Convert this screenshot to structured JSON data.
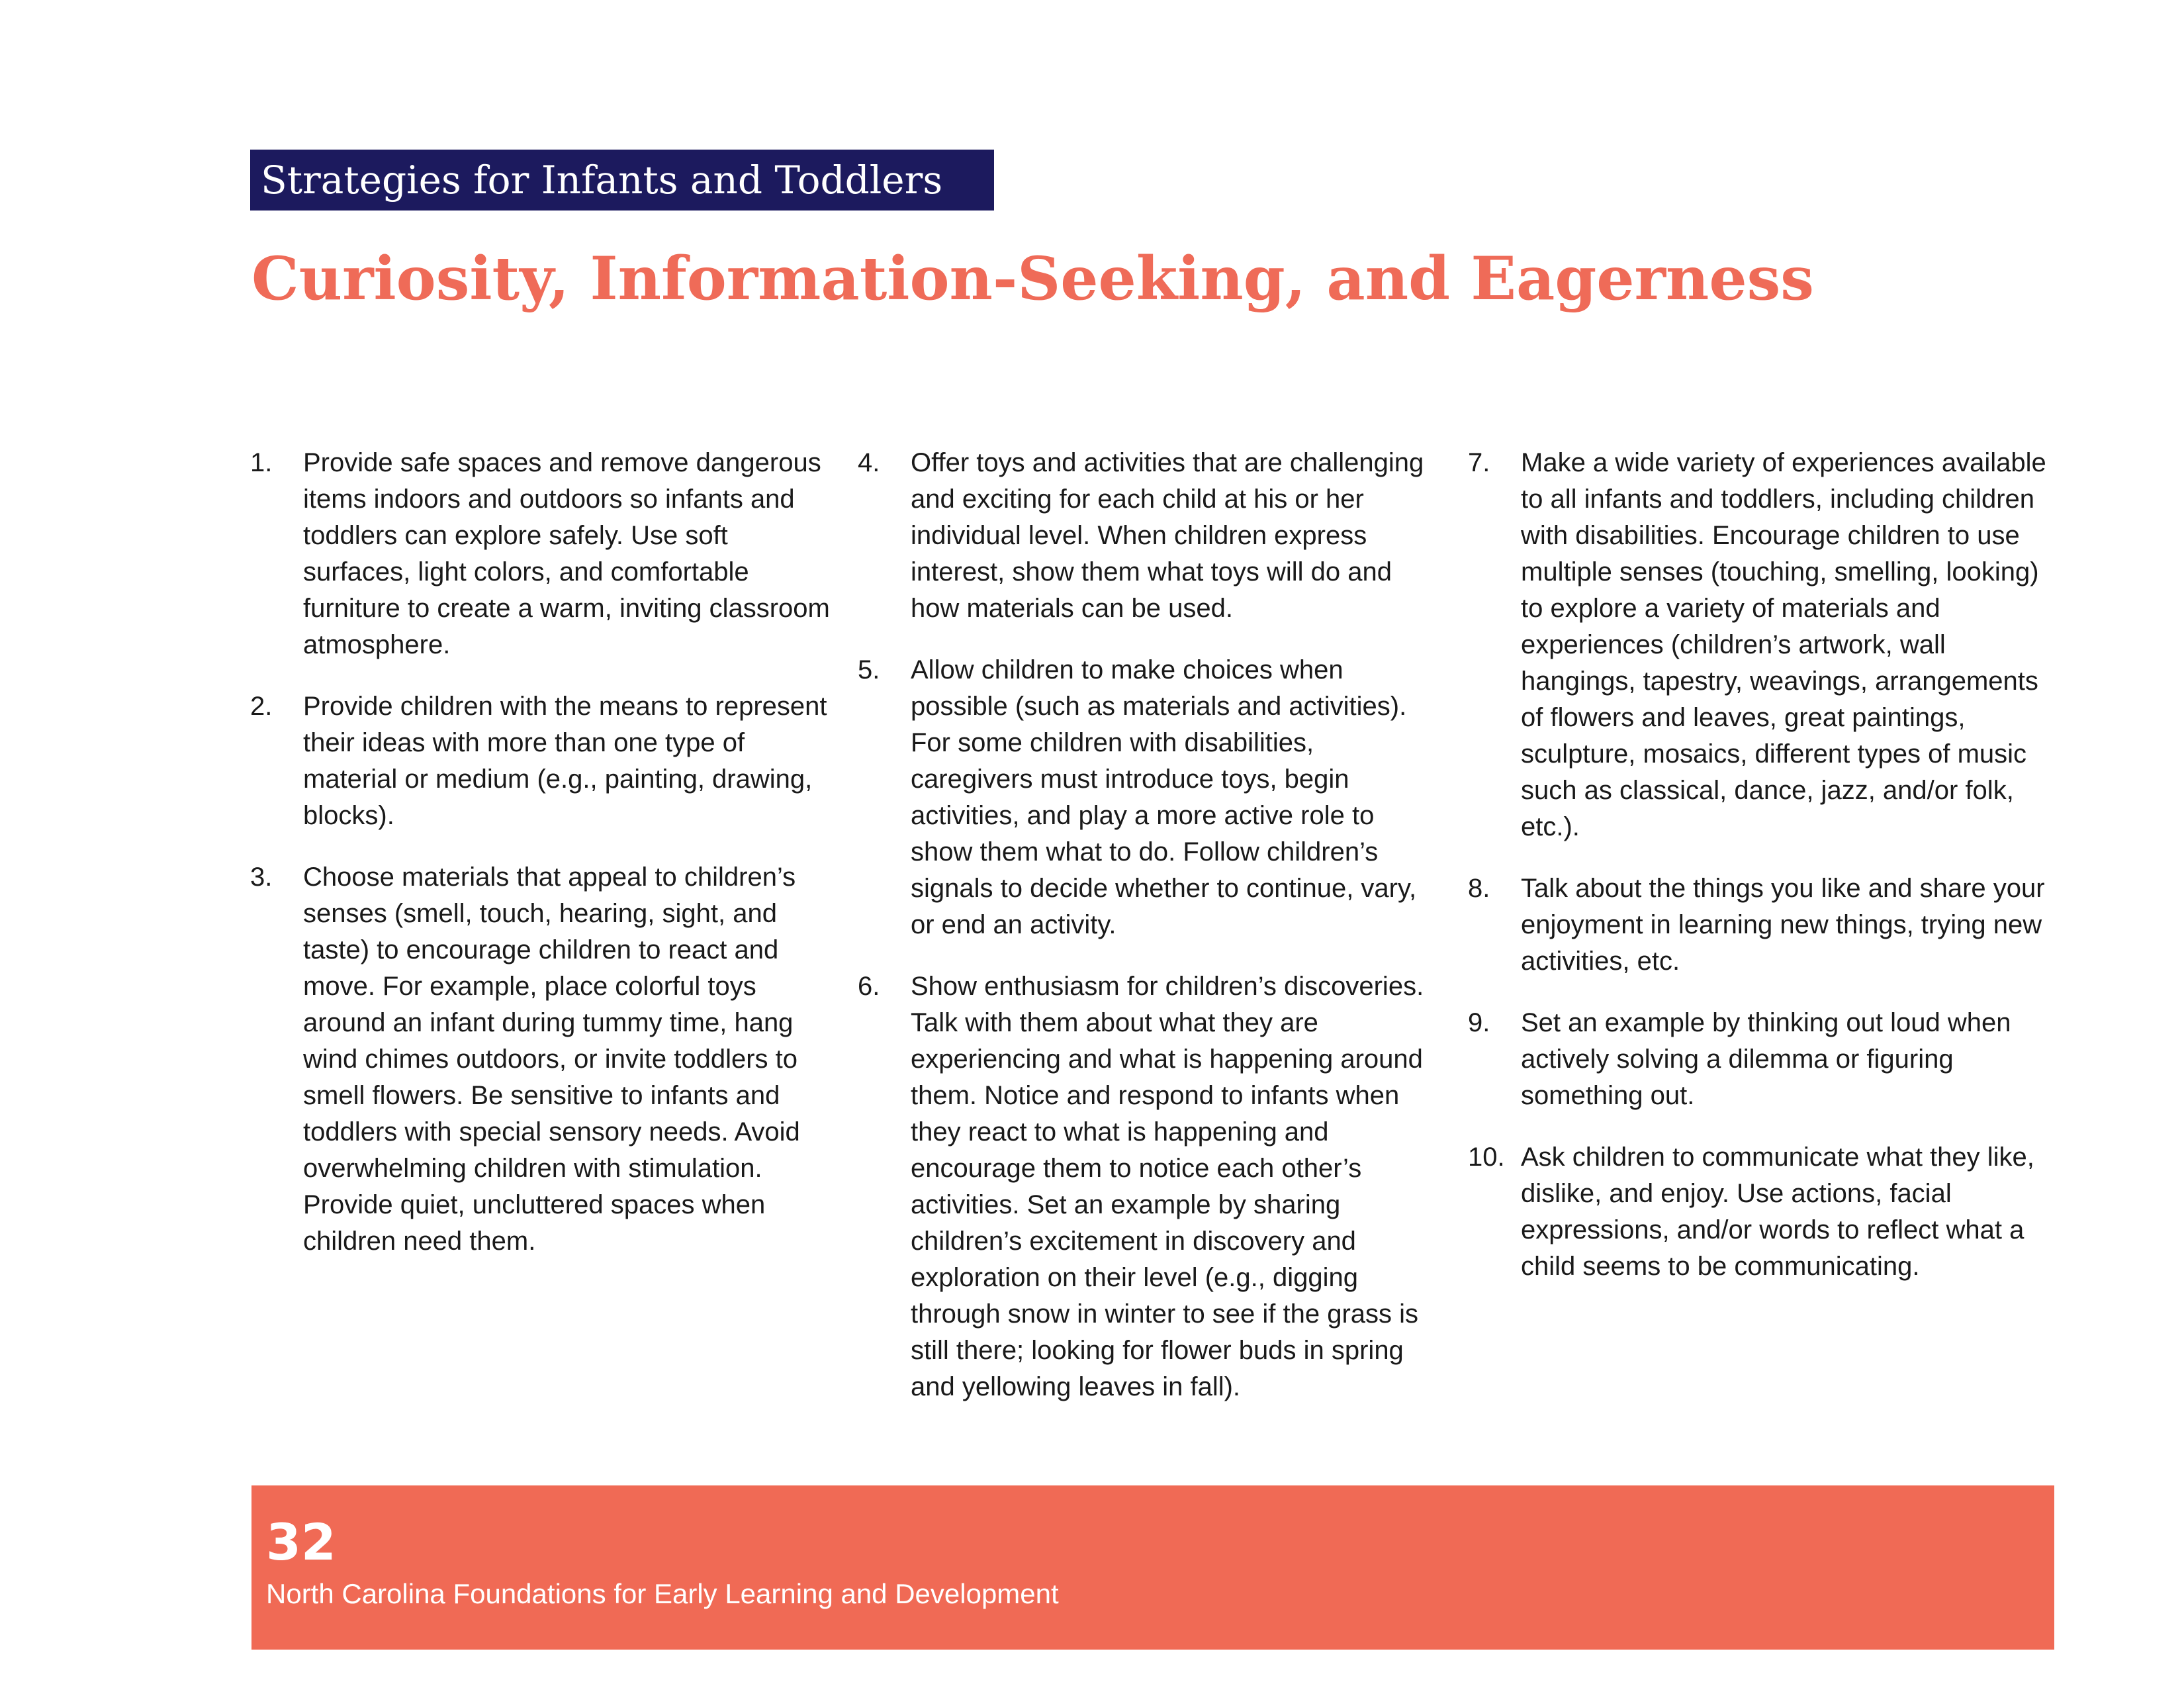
{
  "header": {
    "section_label": "Strategies for Infants and Toddlers",
    "title": "Curiosity, Information-Seeking, and Eagerness"
  },
  "columns": [
    {
      "items": [
        {
          "number": "1.",
          "text": "Provide safe spaces and remove dangerous items indoors and outdoors so infants and toddlers can explore safely. Use soft surfaces, light colors, and comfortable furniture to create a warm, inviting classroom atmosphere."
        },
        {
          "number": "2.",
          "text": "Provide children with the means to represent their ideas with more than one type of material or medium (e.g., painting, drawing, blocks)."
        },
        {
          "number": "3.",
          "text": "Choose materials that appeal to children’s senses (smell, touch, hearing, sight, and taste) to encourage children to react and move. For example, place colorful toys around an infant during tummy time, hang wind chimes outdoors, or invite toddlers to smell flowers. Be sensitive to infants and toddlers with special sensory needs. Avoid overwhelming children with stimulation. Provide quiet, uncluttered spaces when children need them."
        }
      ]
    },
    {
      "items": [
        {
          "number": "4.",
          "text": "Offer toys and activities that are challenging and exciting for each child at his or her individual level. When children express interest, show them what toys will do and how materials can be used."
        },
        {
          "number": "5.",
          "text": "Allow children to make choices when possible (such as materials and activities). For some children with disabilities, caregivers must introduce toys, begin activities, and play a more active role to show them what to do. Follow children’s signals to decide whether to continue, vary, or end an activity."
        },
        {
          "number": "6.",
          "text": "Show enthusiasm for children’s discoveries. Talk with them about what they are experiencing and what is happening around them. Notice and respond to infants when they react to what is happening and encourage them to notice each other’s activities. Set an example by sharing children’s excitement in discovery and exploration on their level (e.g., digging through snow in winter to see if the grass is still there; looking for flower buds in spring and yellowing leaves in fall)."
        }
      ]
    },
    {
      "items": [
        {
          "number": "7.",
          "text": "Make a wide variety of experiences available to all infants and toddlers, including children with disabilities. Encourage children to use multiple senses (touching, smelling, looking) to explore a variety of materials and experiences (children’s artwork, wall hangings, tapestry, weavings, arrangements of flowers and leaves, great paintings, sculpture, mosaics, different types of music such as classical, dance, jazz, and/or folk, etc.)."
        },
        {
          "number": "8.",
          "text": "Talk about the things you like and share your enjoyment in learning new things, trying new activities, etc."
        },
        {
          "number": "9.",
          "text": "Set an example by thinking out loud when actively solving a dilemma or figuring something out."
        },
        {
          "number": "10.",
          "text": "Ask children to communicate what they like, dislike, and enjoy. Use actions, facial expressions, and/or words to reflect what a child seems to be communicating."
        }
      ]
    }
  ],
  "footer": {
    "page_number": "32",
    "publication": "North Carolina Foundations for Early Learning and Development"
  },
  "colors": {
    "banner_navy": "#1c1a5e",
    "title_coral": "#ef6b58",
    "footer_coral": "#f06a55"
  }
}
